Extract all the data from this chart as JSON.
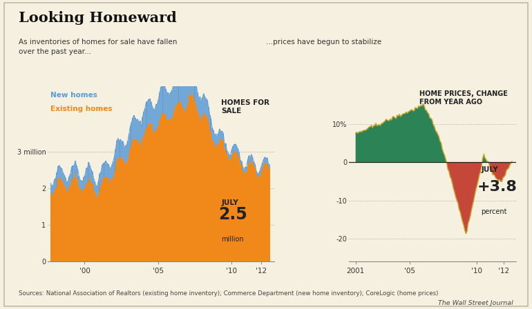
{
  "bg_color": "#f5f0e0",
  "title": "Looking Homeward",
  "subtitle_left": "As inventories of homes for sale have fallen\nover the past year...",
  "subtitle_right": "...prices have begun to stabilize",
  "legend_new": "New homes",
  "legend_existing": "Existing homes",
  "color_new_homes": "#5b9bd5",
  "color_existing_homes": "#f0891a",
  "color_positive": "#1a7a4a",
  "color_negative": "#c0392b",
  "color_border": "#c8a830",
  "source_text": "Sources: National Association of Realtors (existing home inventory); Commerce Department (new home inventory); CoreLogic (home prices)",
  "wsj_text": "The Wall Street Journal"
}
